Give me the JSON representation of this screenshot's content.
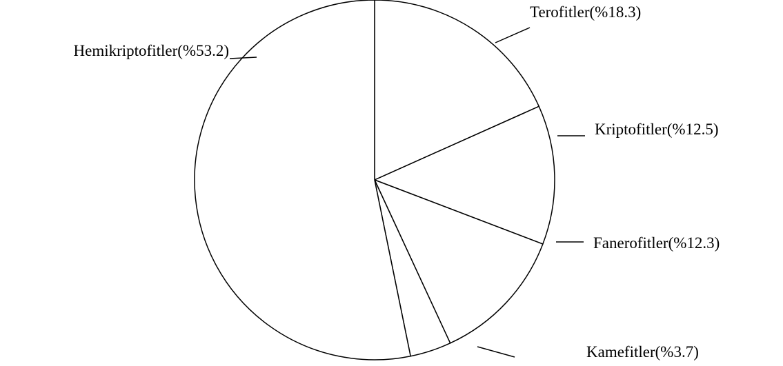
{
  "chart_data": {
    "type": "pie",
    "categories": [
      "Terofitler",
      "Kriptofitler",
      "Fanerofitler",
      "Kamefitler",
      "Hemikriptofitler"
    ],
    "values": [
      18.3,
      12.5,
      12.3,
      3.7,
      53.2
    ],
    "value_labels": [
      "(%18.3)",
      "(%12.5)",
      "(%12.3)",
      "(%3.7)",
      "(%53.2)"
    ],
    "color": "#ffffff"
  }
}
